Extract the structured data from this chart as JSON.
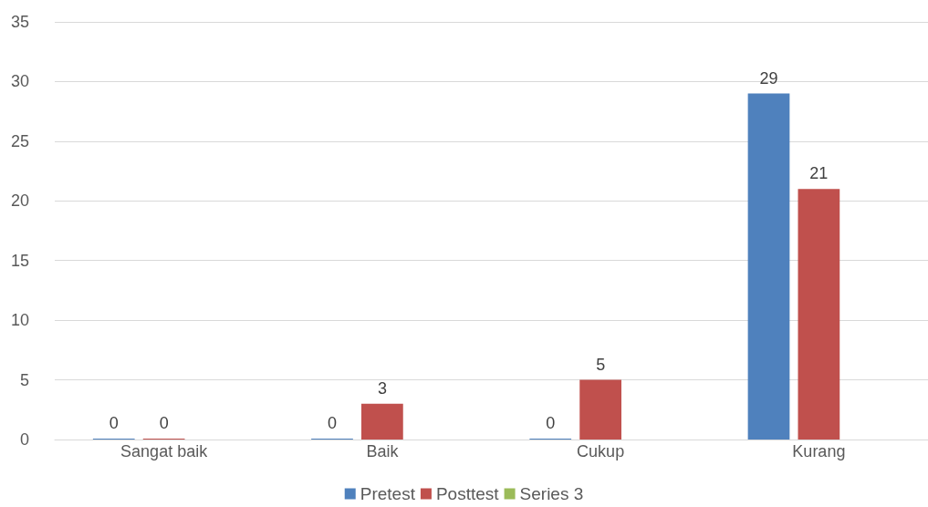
{
  "chart_data": {
    "type": "bar",
    "categories": [
      "Sangat baik",
      "Baik",
      "Cukup",
      "Kurang"
    ],
    "series": [
      {
        "name": "Pretest",
        "color": "#4f81bd",
        "values": [
          0,
          0,
          0,
          29
        ]
      },
      {
        "name": "Posttest",
        "color": "#c0504d",
        "values": [
          0,
          3,
          5,
          21
        ]
      },
      {
        "name": "Series 3",
        "color": "#9bbb59",
        "values": [
          null,
          null,
          null,
          null
        ]
      }
    ],
    "ylim": [
      0,
      35
    ],
    "yticks": [
      0,
      5,
      10,
      15,
      20,
      25,
      30,
      35
    ],
    "grid": "y",
    "legend": "bottom",
    "data_labels": true
  }
}
